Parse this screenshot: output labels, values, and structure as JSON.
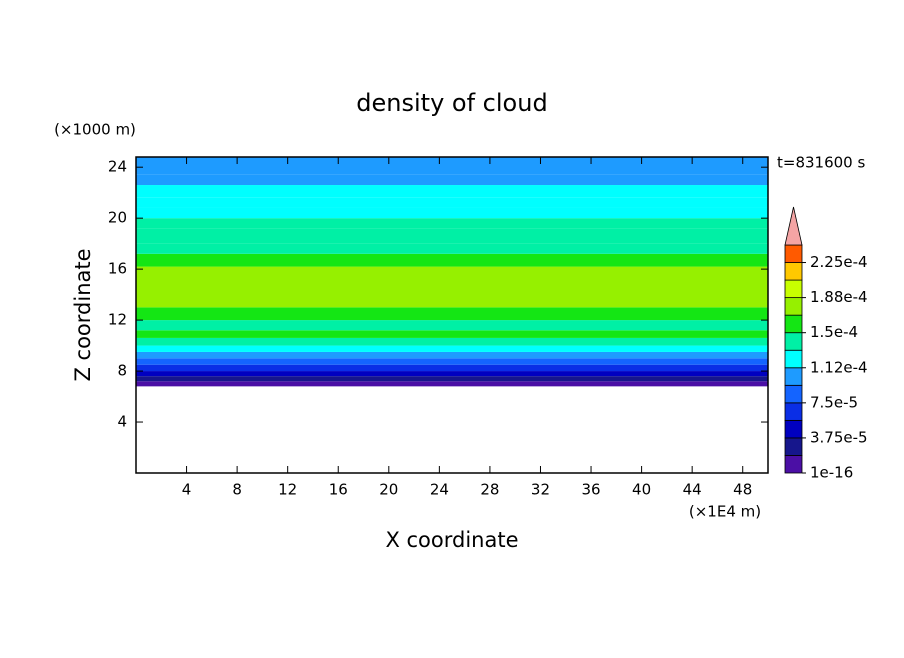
{
  "chart_data": {
    "type": "contour",
    "title": "density of cloud",
    "xlabel": "X coordinate",
    "ylabel": "Z coordinate",
    "x_unit": "(×1E4 m)",
    "y_unit": "(×1000 m)",
    "annotation": "t=831600 s",
    "xlim": [
      0,
      50
    ],
    "ylim": [
      0,
      24.8
    ],
    "xticks": [
      4,
      8,
      12,
      16,
      20,
      24,
      28,
      32,
      36,
      40,
      44,
      48
    ],
    "yticks": [
      4,
      8,
      12,
      16,
      20,
      24
    ],
    "z": [
      0,
      6.8,
      7.2,
      7.6,
      8.0,
      8.5,
      9.0,
      9.5,
      10.0,
      10.6,
      11.2,
      12.0,
      13.0,
      16.2,
      17.2,
      18.0,
      19.2,
      20.0,
      20.8,
      21.6,
      22.6,
      23.4
    ],
    "values": [
      null,
      9e-06,
      2.8e-05,
      4.7e-05,
      6.6e-05,
      8.4e-05,
      0.000103,
      0.000122,
      0.00014,
      0.000158,
      0.00014,
      0.000158,
      0.000175,
      0.000158,
      0.000145,
      0.00014,
      0.000145,
      0.00013,
      0.000122,
      0.000115,
      0.000105,
      0.0001
    ],
    "levels": [
      1e-16,
      1.875e-05,
      3.75e-05,
      5.625e-05,
      7.5e-05,
      9.375e-05,
      0.0001125,
      0.00013125,
      0.00015,
      0.00016875,
      0.0001875,
      0.00020625,
      0.000225,
      0.00024375
    ],
    "colors": [
      "#4b0fa5",
      "#16168c",
      "#0000c0",
      "#0a2ee6",
      "#1464ff",
      "#1e9bff",
      "#00ffff",
      "#00f0a5",
      "#14e614",
      "#96f000",
      "#c8ff00",
      "#ffc800",
      "#ff5a00"
    ],
    "extend_color": "#f4a4a4",
    "cbar_ticks": [
      {
        "value": 1e-16,
        "label": "1e-16"
      },
      {
        "value": 3.75e-05,
        "label": "3.75e-5"
      },
      {
        "value": 7.5e-05,
        "label": "7.5e-5"
      },
      {
        "value": 0.0001125,
        "label": "1.12e-4"
      },
      {
        "value": 0.00015,
        "label": "1.5e-4"
      },
      {
        "value": 0.0001875,
        "label": "1.88e-4"
      },
      {
        "value": 0.000225,
        "label": "2.25e-4"
      }
    ]
  }
}
